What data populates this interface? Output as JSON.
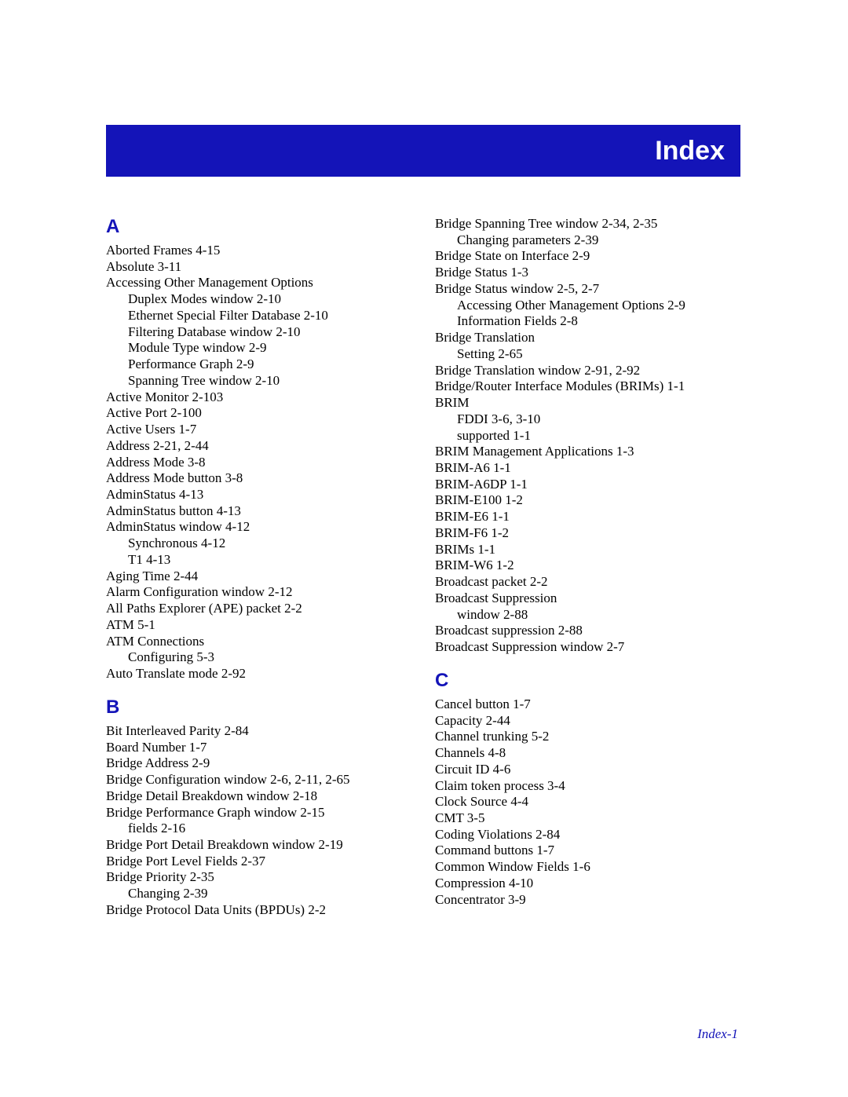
{
  "header": {
    "title": "Index"
  },
  "footer": {
    "text": "Index-1"
  },
  "colors": {
    "band_bg": "#1414b8",
    "band_text": "#ffffff",
    "letter": "#1414b8",
    "body_text": "#000000",
    "page_bg": "#ffffff"
  },
  "typography": {
    "heading_family": "Arial, Helvetica, sans-serif",
    "body_family": "Book Antiqua, Palatino, Georgia, serif",
    "heading_size_pt": 26,
    "letter_size_pt": 18,
    "entry_size_pt": 13
  },
  "left": {
    "A": {
      "letter": "A",
      "e": [
        "Aborted Frames  4-15",
        "Absolute  3-11",
        "Accessing Other Management Options",
        "Active Monitor  2-103",
        "Active Port  2-100",
        "Active Users  1-7",
        "Address  2-21, 2-44",
        "Address Mode  3-8",
        "Address Mode button  3-8",
        "AdminStatus  4-13",
        "AdminStatus button  4-13",
        "AdminStatus window  4-12",
        "Aging Time  2-44",
        "Alarm Configuration window  2-12",
        "All Paths Explorer (APE) packet  2-2",
        "ATM  5-1",
        "ATM Connections",
        "Auto Translate mode  2-92"
      ],
      "sub_accessing": [
        "Duplex Modes window  2-10",
        "Ethernet Special Filter Database  2-10",
        "Filtering Database window  2-10",
        "Module Type window  2-9",
        "Performance Graph  2-9",
        "Spanning Tree window  2-10"
      ],
      "sub_adminstatus": [
        "Synchronous  4-12",
        "T1  4-13"
      ],
      "sub_atmconn": [
        "Configuring  5-3"
      ]
    },
    "B": {
      "letter": "B",
      "e": [
        "Bit Interleaved Parity  2-84",
        "Board Number  1-7",
        "Bridge Address  2-9",
        "Bridge Configuration window  2-6, 2-11, 2-65",
        "Bridge Detail Breakdown window  2-18",
        "Bridge Performance Graph window  2-15",
        "Bridge Port Detail Breakdown window  2-19",
        "Bridge Port Level Fields  2-37",
        "Bridge Priority  2-35",
        "Bridge Protocol Data Units (BPDUs)  2-2"
      ],
      "sub_perfgraph": [
        "fields  2-16"
      ],
      "sub_priority": [
        "Changing  2-39"
      ]
    }
  },
  "right": {
    "Bcont": {
      "e": [
        "Bridge Spanning Tree window  2-34, 2-35",
        "Bridge State on Interface  2-9",
        "Bridge Status  1-3",
        "Bridge Status window  2-5, 2-7",
        "Bridge Translation",
        "Bridge Translation window  2-91, 2-92",
        "Bridge/Router Interface Modules (BRIMs)  1-1",
        "BRIM",
        "BRIM Management Applications  1-3",
        "BRIM-A6  1-1",
        "BRIM-A6DP  1-1",
        "BRIM-E100  1-2",
        "BRIM-E6  1-1",
        "BRIM-F6  1-2",
        "BRIMs  1-1",
        "BRIM-W6  1-2",
        "Broadcast packet  2-2",
        "Broadcast Suppression",
        "Broadcast suppression  2-88",
        "Broadcast Suppression window  2-7"
      ],
      "sub_spanning": [
        "Changing parameters  2-39"
      ],
      "sub_statuswin": [
        "Accessing Other Management Options  2-9",
        "Information Fields  2-8"
      ],
      "sub_translation": [
        "Setting  2-65"
      ],
      "sub_brim": [
        "FDDI  3-6, 3-10",
        "supported  1-1"
      ],
      "sub_bsup": [
        "window  2-88"
      ]
    },
    "C": {
      "letter": "C",
      "e": [
        "Cancel button  1-7",
        "Capacity  2-44",
        "Channel trunking  5-2",
        "Channels  4-8",
        "Circuit ID  4-6",
        "Claim token process  3-4",
        "Clock Source  4-4",
        "CMT  3-5",
        "Coding Violations  2-84",
        "Command buttons  1-7",
        "Common Window Fields  1-6",
        "Compression  4-10",
        "Concentrator  3-9"
      ]
    }
  }
}
